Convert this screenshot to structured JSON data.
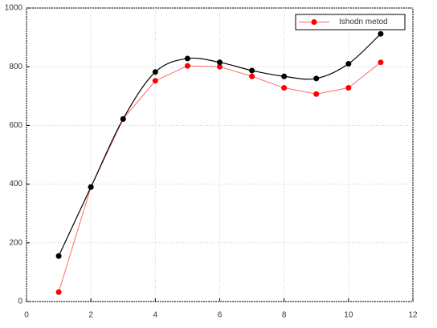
{
  "chart_data": {
    "type": "line",
    "x": [
      1,
      2,
      3,
      4,
      5,
      6,
      7,
      8,
      9,
      10,
      11
    ],
    "series": [
      {
        "name": "Ishodn metod",
        "color": "#ff0000",
        "smooth": false,
        "values": [
          32,
          390,
          622,
          752,
          803,
          800,
          767,
          728,
          707,
          728,
          815
        ]
      },
      {
        "color": "#000000",
        "smooth": true,
        "values": [
          155,
          390,
          622,
          782,
          828,
          815,
          787,
          767,
          760,
          810,
          912
        ]
      }
    ],
    "xlim": [
      0,
      12
    ],
    "xticks": [
      0,
      2,
      4,
      6,
      8,
      10,
      12
    ],
    "ylim": [
      0,
      1000
    ],
    "yticks": [
      0,
      200,
      400,
      600,
      800,
      1000
    ],
    "grid": true,
    "legend": "upper right"
  }
}
